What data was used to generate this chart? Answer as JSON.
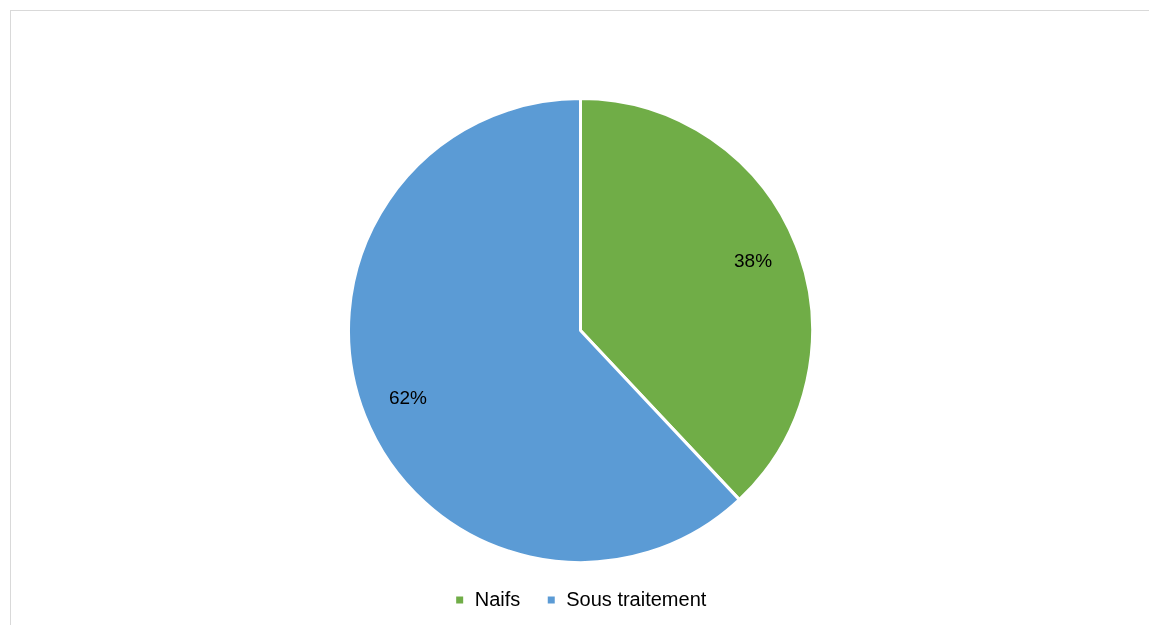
{
  "chart_data": {
    "type": "pie",
    "categories": [
      "Naifs",
      "Sous traitement"
    ],
    "values": [
      38,
      62
    ],
    "colors": [
      "#70ad47",
      "#5b9bd5"
    ],
    "value_labels": [
      "38%",
      "62%"
    ],
    "legend": "bottom"
  }
}
